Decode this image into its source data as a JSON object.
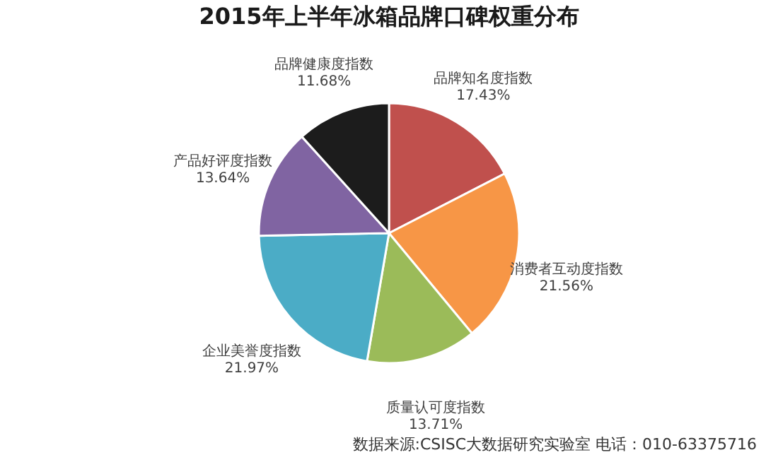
{
  "chart_data": {
    "type": "pie",
    "title": "2015年上半年冰箱品牌口碑权重分布",
    "categories": [
      "品牌知名度指数",
      "消费者互动度指数",
      "质量认可度指数",
      "企业美誉度指数",
      "产品好评度指数",
      "品牌健康度指数"
    ],
    "values": [
      17.43,
      21.56,
      13.71,
      21.97,
      13.64,
      11.68
    ],
    "value_labels": [
      "17.43%",
      "21.56%",
      "13.71%",
      "21.97%",
      "13.64%",
      "11.68%"
    ],
    "colors": [
      "#c0504d",
      "#f79646",
      "#9bbb59",
      "#4bacc6",
      "#8064a2",
      "#1c1c1c"
    ],
    "annotations": [
      "数据来源:CSISC大数据研究实验室 电话：010-63375716"
    ],
    "legend": false
  }
}
